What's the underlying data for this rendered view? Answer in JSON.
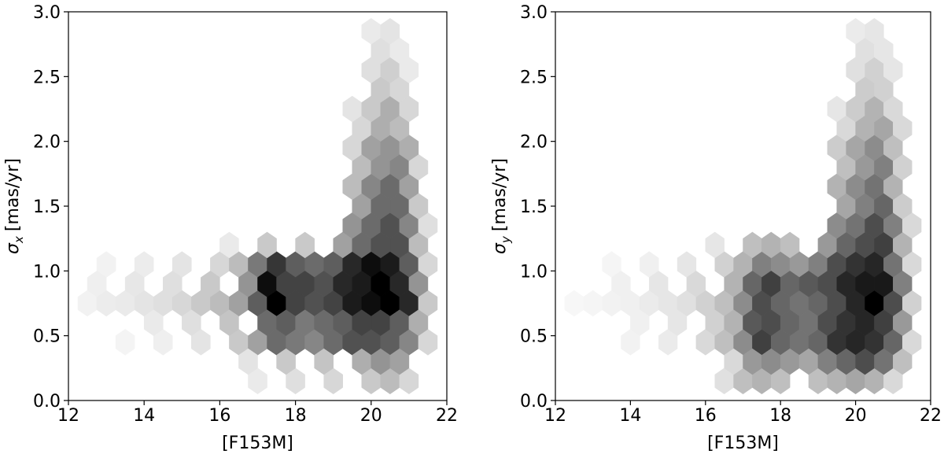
{
  "chart_data": [
    {
      "type": "hexbin",
      "color": "#000000",
      "xlabel": "[F153M]",
      "ylabel_symbol": "σ",
      "ylabel_subscript": "x",
      "ylabel_unit": "[mas/yr]",
      "xlim": [
        12,
        22
      ],
      "ylim": [
        0,
        3
      ],
      "xticks": [
        12,
        14,
        16,
        18,
        20,
        22
      ],
      "yticks": [
        {
          "value": 0,
          "label": "0.0"
        },
        {
          "value": 0.5,
          "label": "0.5"
        },
        {
          "value": 1,
          "label": "1.0"
        },
        {
          "value": 1.5,
          "label": "1.5"
        },
        {
          "value": 2,
          "label": "2.0"
        },
        {
          "value": 2.5,
          "label": "2.5"
        },
        {
          "value": 3,
          "label": "3.0"
        }
      ],
      "x": [
        12.5,
        13,
        13.5,
        14,
        14.5,
        15,
        15.5,
        16,
        16.5,
        17,
        17.5,
        18,
        18.5,
        19,
        19.5,
        20,
        20.5,
        21,
        21.5,
        13,
        14,
        15,
        16,
        16.5,
        17,
        17.5,
        18,
        18.5,
        19,
        19.5,
        20,
        20.5,
        21,
        21.5,
        13.5,
        14.5,
        15.5,
        16.5,
        17,
        17.5,
        18,
        18.5,
        19,
        19.5,
        20,
        20.5,
        21,
        21.5,
        17,
        18,
        19,
        20,
        20.5,
        21,
        12.75,
        13.75,
        14.75,
        15.75,
        16.75,
        17.25,
        17.75,
        18.25,
        18.75,
        19.25,
        19.75,
        20.25,
        20.75,
        21.25,
        14.25,
        15.25,
        16.25,
        17.25,
        17.75,
        18.25,
        18.75,
        19.25,
        19.75,
        20.25,
        20.75,
        21.25,
        16.75,
        17.75,
        18.75,
        19.75,
        20.25,
        20.75,
        16.25,
        17.25,
        18.25,
        19.25,
        19.75,
        20.25,
        20.75,
        21.25,
        19.5,
        20,
        20.5,
        21,
        21.5,
        19.75,
        20.25,
        20.75,
        21.25,
        19.5,
        20,
        20.5,
        21,
        19.75,
        20.25,
        20.75,
        21.25,
        19.5,
        20,
        20.5,
        21,
        19.75,
        20.25,
        20.75,
        19.5,
        20,
        20.5,
        21,
        20.25,
        20.75,
        20,
        20.5,
        21,
        20.25,
        20.75,
        20,
        20.5
      ],
      "y": [
        0.75,
        0.75,
        0.75,
        0.75,
        0.75,
        0.75,
        0.75,
        0.75,
        0.75,
        0.75,
        0.75,
        0.75,
        0.75,
        0.75,
        0.75,
        0.75,
        0.75,
        0.75,
        0.75,
        1.05,
        1.05,
        1.05,
        1.05,
        1.05,
        1.05,
        1.05,
        1.05,
        1.05,
        1.05,
        1.05,
        1.05,
        1.05,
        1.05,
        1.05,
        0.45,
        0.45,
        0.45,
        0.45,
        0.45,
        0.45,
        0.45,
        0.45,
        0.45,
        0.45,
        0.45,
        0.45,
        0.45,
        0.45,
        0.15,
        0.15,
        0.15,
        0.15,
        0.15,
        0.15,
        0.9,
        0.9,
        0.9,
        0.9,
        0.9,
        0.9,
        0.9,
        0.9,
        0.9,
        0.9,
        0.9,
        0.9,
        0.9,
        0.9,
        0.6,
        0.6,
        0.6,
        0.6,
        0.6,
        0.6,
        0.6,
        0.6,
        0.6,
        0.6,
        0.6,
        0.6,
        0.3,
        0.3,
        0.3,
        0.3,
        0.3,
        0.3,
        1.2,
        1.2,
        1.2,
        1.2,
        1.2,
        1.2,
        1.2,
        1.2,
        1.35,
        1.35,
        1.35,
        1.35,
        1.35,
        1.5,
        1.5,
        1.5,
        1.5,
        1.65,
        1.65,
        1.65,
        1.65,
        1.8,
        1.8,
        1.8,
        1.8,
        1.95,
        1.95,
        1.95,
        1.95,
        2.1,
        2.1,
        2.1,
        2.25,
        2.25,
        2.25,
        2.25,
        2.4,
        2.4,
        2.55,
        2.55,
        2.55,
        2.7,
        2.7,
        2.85,
        2.85
      ],
      "values": [
        5,
        7,
        8,
        10,
        12,
        15,
        20,
        25,
        35,
        60,
        95,
        70,
        65,
        70,
        85,
        90,
        95,
        80,
        20,
        5,
        7,
        10,
        15,
        25,
        50,
        75,
        60,
        55,
        60,
        80,
        90,
        85,
        60,
        15,
        4,
        6,
        10,
        20,
        35,
        55,
        50,
        45,
        55,
        65,
        65,
        60,
        45,
        15,
        8,
        12,
        15,
        20,
        25,
        15,
        6,
        9,
        12,
        20,
        40,
        90,
        70,
        70,
        65,
        80,
        85,
        95,
        80,
        40,
        8,
        12,
        22,
        55,
        60,
        50,
        55,
        60,
        70,
        70,
        60,
        30,
        10,
        20,
        22,
        30,
        40,
        35,
        8,
        20,
        20,
        35,
        55,
        65,
        65,
        25,
        40,
        55,
        65,
        45,
        12,
        35,
        55,
        55,
        20,
        25,
        45,
        55,
        35,
        25,
        40,
        45,
        15,
        15,
        35,
        40,
        30,
        15,
        30,
        25,
        10,
        20,
        30,
        15,
        20,
        15,
        12,
        18,
        8,
        12,
        8,
        8,
        10
      ]
    },
    {
      "type": "hexbin",
      "color": "#000000",
      "xlabel": "[F153M]",
      "ylabel_symbol": "σ",
      "ylabel_subscript": "y",
      "ylabel_unit": "[mas/yr]",
      "xlim": [
        12,
        22
      ],
      "ylim": [
        0,
        3
      ],
      "xticks": [
        12,
        14,
        16,
        18,
        20,
        22
      ],
      "yticks": [
        {
          "value": 0,
          "label": "0.0"
        },
        {
          "value": 0.5,
          "label": "0.5"
        },
        {
          "value": 1,
          "label": "1.0"
        },
        {
          "value": 1.5,
          "label": "1.5"
        },
        {
          "value": 2,
          "label": "2.0"
        },
        {
          "value": 2.5,
          "label": "2.5"
        },
        {
          "value": 3,
          "label": "3.0"
        }
      ],
      "x": [
        12.5,
        13,
        13.5,
        14,
        14.5,
        15,
        15.5,
        16,
        16.5,
        17,
        17.5,
        18,
        18.5,
        19,
        19.5,
        20,
        20.5,
        21,
        21.5,
        13.5,
        14.5,
        15.5,
        16.5,
        17,
        17.5,
        18,
        18.5,
        19,
        19.5,
        20,
        20.5,
        21,
        21.5,
        14,
        15,
        16,
        16.5,
        17,
        17.5,
        18,
        18.5,
        19,
        19.5,
        20,
        20.5,
        21,
        21.5,
        16.5,
        17,
        17.5,
        18,
        19,
        19.5,
        20,
        20.5,
        21,
        13.75,
        14.75,
        15.75,
        16.75,
        17.25,
        17.75,
        18.25,
        18.75,
        19.25,
        19.75,
        20.25,
        20.75,
        21.25,
        14.25,
        15.25,
        16.25,
        16.75,
        17.25,
        17.75,
        18.25,
        18.75,
        19.25,
        19.75,
        20.25,
        20.75,
        21.25,
        16.75,
        17.25,
        17.75,
        18.25,
        18.75,
        19.25,
        19.75,
        20.25,
        20.75,
        21.25,
        16.25,
        17.25,
        17.75,
        18.25,
        19.25,
        19.75,
        20.25,
        20.75,
        21.25,
        19.5,
        20,
        20.5,
        21,
        21.5,
        19.75,
        20.25,
        20.75,
        21.25,
        19.5,
        20,
        20.5,
        21,
        19.75,
        20.25,
        20.75,
        21.25,
        19.5,
        20,
        20.5,
        21,
        19.75,
        20.25,
        20.75,
        21.25,
        19.5,
        20,
        20.5,
        21,
        20.25,
        20.75,
        20,
        20.5,
        21,
        20.25,
        20.75,
        20,
        20.5
      ],
      "y": [
        0.75,
        0.75,
        0.75,
        0.75,
        0.75,
        0.75,
        0.75,
        0.75,
        0.75,
        0.75,
        0.75,
        0.75,
        0.75,
        0.75,
        0.75,
        0.75,
        0.75,
        0.75,
        0.75,
        1.05,
        1.05,
        1.05,
        1.05,
        1.05,
        1.05,
        1.05,
        1.05,
        1.05,
        1.05,
        1.05,
        1.05,
        1.05,
        1.05,
        0.45,
        0.45,
        0.45,
        0.45,
        0.45,
        0.45,
        0.45,
        0.45,
        0.45,
        0.45,
        0.45,
        0.45,
        0.45,
        0.45,
        0.15,
        0.15,
        0.15,
        0.15,
        0.15,
        0.15,
        0.15,
        0.15,
        0.15,
        0.9,
        0.9,
        0.9,
        0.9,
        0.9,
        0.9,
        0.9,
        0.9,
        0.9,
        0.9,
        0.9,
        0.9,
        0.9,
        0.6,
        0.6,
        0.6,
        0.6,
        0.6,
        0.6,
        0.6,
        0.6,
        0.6,
        0.6,
        0.6,
        0.6,
        0.6,
        0.3,
        0.3,
        0.3,
        0.3,
        0.3,
        0.3,
        0.3,
        0.3,
        0.3,
        0.3,
        1.2,
        1.2,
        1.2,
        1.2,
        1.2,
        1.2,
        1.2,
        1.2,
        1.2,
        1.35,
        1.35,
        1.35,
        1.35,
        1.35,
        1.5,
        1.5,
        1.5,
        1.5,
        1.65,
        1.65,
        1.65,
        1.65,
        1.8,
        1.8,
        1.8,
        1.8,
        1.95,
        1.95,
        1.95,
        1.95,
        2.1,
        2.1,
        2.1,
        2.1,
        2.25,
        2.25,
        2.25,
        2.25,
        2.4,
        2.4,
        2.55,
        2.55,
        2.55,
        2.7,
        2.7,
        2.85,
        2.85
      ],
      "values": [
        3,
        4,
        5,
        6,
        8,
        10,
        12,
        18,
        25,
        45,
        70,
        60,
        55,
        60,
        70,
        85,
        100,
        70,
        18,
        4,
        6,
        10,
        18,
        30,
        50,
        45,
        40,
        50,
        70,
        80,
        85,
        55,
        15,
        5,
        8,
        15,
        25,
        45,
        75,
        60,
        55,
        60,
        80,
        85,
        80,
        60,
        15,
        12,
        25,
        30,
        25,
        25,
        30,
        35,
        30,
        15,
        6,
        10,
        15,
        30,
        60,
        75,
        60,
        65,
        70,
        85,
        90,
        90,
        50,
        6,
        10,
        18,
        30,
        65,
        70,
        60,
        55,
        70,
        80,
        85,
        75,
        40,
        15,
        40,
        45,
        40,
        35,
        50,
        60,
        70,
        55,
        25,
        10,
        25,
        30,
        25,
        40,
        60,
        70,
        75,
        30,
        45,
        55,
        70,
        50,
        15,
        35,
        50,
        60,
        20,
        30,
        45,
        55,
        30,
        25,
        40,
        50,
        18,
        20,
        35,
        45,
        25,
        15,
        30,
        35,
        15,
        10,
        20,
        30,
        15,
        20,
        18,
        12,
        18,
        10,
        12,
        10,
        8,
        10
      ]
    }
  ]
}
